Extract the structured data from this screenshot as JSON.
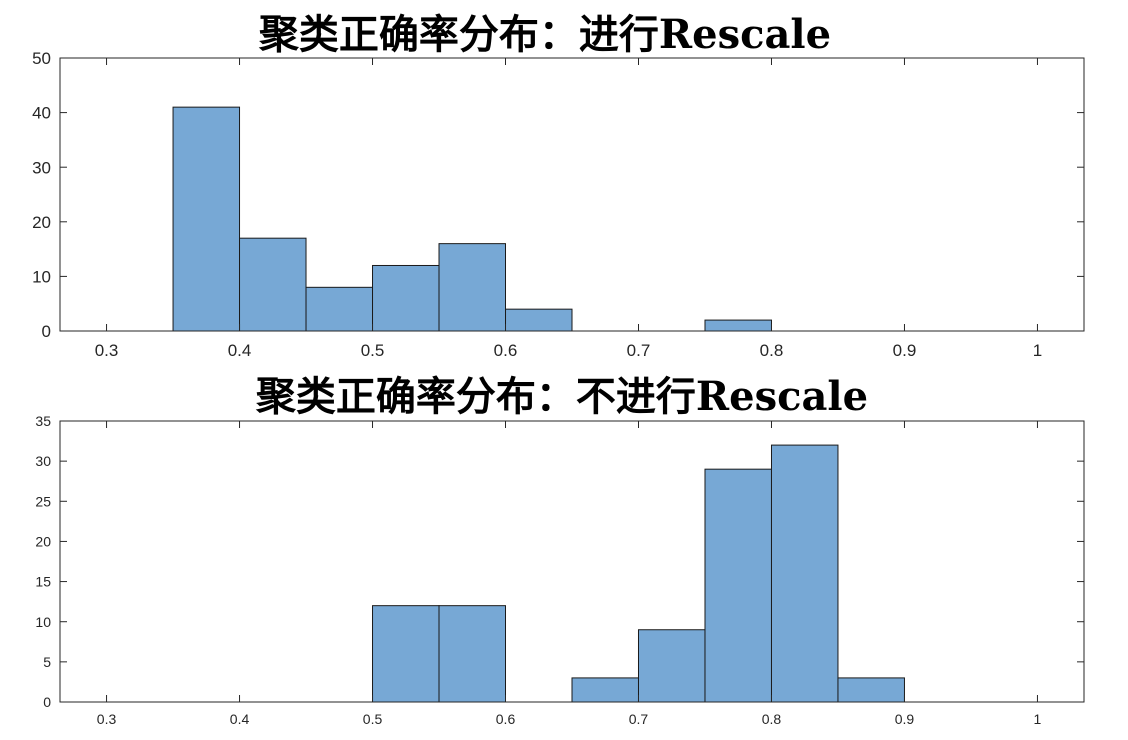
{
  "chart_data": [
    {
      "type": "bar",
      "title": "聚类正确率分布：进行Rescale",
      "xlabel": "",
      "ylabel": "",
      "xlim": [
        0.265,
        1.035
      ],
      "ylim": [
        0,
        50
      ],
      "xticks": [
        "0.3",
        "0.4",
        "0.5",
        "0.6",
        "0.7",
        "0.8",
        "0.9",
        "1"
      ],
      "yticks": [
        "0",
        "10",
        "20",
        "30",
        "40",
        "50"
      ],
      "bin_width": 0.05,
      "bins": [
        {
          "x0": 0.35,
          "x1": 0.4,
          "value": 41
        },
        {
          "x0": 0.4,
          "x1": 0.45,
          "value": 17
        },
        {
          "x0": 0.45,
          "x1": 0.5,
          "value": 8
        },
        {
          "x0": 0.5,
          "x1": 0.55,
          "value": 12
        },
        {
          "x0": 0.55,
          "x1": 0.6,
          "value": 16
        },
        {
          "x0": 0.6,
          "x1": 0.65,
          "value": 4
        },
        {
          "x0": 0.75,
          "x1": 0.8,
          "value": 2
        }
      ],
      "bar_color": "#77a8d5",
      "grid": false,
      "legend": "none"
    },
    {
      "type": "bar",
      "title": "聚类正确率分布：不进行Rescale",
      "xlabel": "",
      "ylabel": "",
      "xlim": [
        0.265,
        1.035
      ],
      "ylim": [
        0,
        35
      ],
      "xticks": [
        "0.3",
        "0.4",
        "0.5",
        "0.6",
        "0.7",
        "0.8",
        "0.9",
        "1"
      ],
      "yticks": [
        "0",
        "5",
        "10",
        "15",
        "20",
        "25",
        "30",
        "35"
      ],
      "bin_width": 0.05,
      "bins": [
        {
          "x0": 0.5,
          "x1": 0.55,
          "value": 12
        },
        {
          "x0": 0.55,
          "x1": 0.6,
          "value": 12
        },
        {
          "x0": 0.65,
          "x1": 0.7,
          "value": 3
        },
        {
          "x0": 0.7,
          "x1": 0.75,
          "value": 9
        },
        {
          "x0": 0.75,
          "x1": 0.8,
          "value": 29
        },
        {
          "x0": 0.8,
          "x1": 0.85,
          "value": 32
        },
        {
          "x0": 0.85,
          "x1": 0.9,
          "value": 3
        }
      ],
      "bar_color": "#77a8d5",
      "grid": false,
      "legend": "none"
    }
  ]
}
